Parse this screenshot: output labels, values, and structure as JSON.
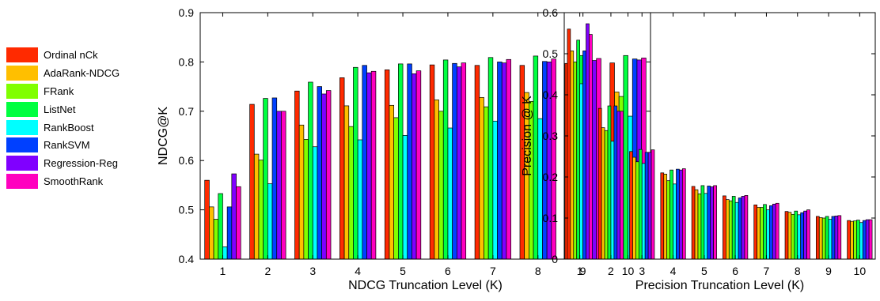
{
  "legend": [
    {
      "label": "Ordinal nCk",
      "color": "#FF2A00"
    },
    {
      "label": "AdaRank-NDCG",
      "color": "#FFBF00"
    },
    {
      "label": "FRank",
      "color": "#80FF00"
    },
    {
      "label": "ListNet",
      "color": "#00FF40"
    },
    {
      "label": "RankBoost",
      "color": "#00FFFF"
    },
    {
      "label": "RankSVM",
      "color": "#0040FF"
    },
    {
      "label": "Regression-Reg",
      "color": "#8000FF"
    },
    {
      "label": "SmoothRank",
      "color": "#FF00BF"
    }
  ],
  "chart_data": [
    {
      "type": "bar",
      "xlabel": "NDCG Truncation Level (K)",
      "ylabel": "NDCG@K",
      "categories": [
        "1",
        "2",
        "3",
        "4",
        "5",
        "6",
        "7",
        "8",
        "9",
        "10"
      ],
      "ylim": [
        0.4,
        0.9
      ],
      "yticks": [
        0.4,
        0.5,
        0.6,
        0.7,
        0.8,
        0.9
      ],
      "ytick_labels": [
        "0.4",
        "0.5",
        "0.6",
        "0.7",
        "0.8",
        "0.9"
      ],
      "series": [
        {
          "name": "Ordinal nCk",
          "values": [
            0.56,
            0.714,
            0.741,
            0.768,
            0.784,
            0.794,
            0.793,
            0.793,
            0.797,
            0.798
          ]
        },
        {
          "name": "AdaRank-NDCG",
          "values": [
            0.506,
            0.613,
            0.672,
            0.711,
            0.712,
            0.723,
            0.728,
            0.738,
            0.738,
            0.739
          ]
        },
        {
          "name": "FRank",
          "values": [
            0.481,
            0.601,
            0.643,
            0.669,
            0.687,
            0.7,
            0.709,
            0.72,
            0.727,
            0.73
          ]
        },
        {
          "name": "ListNet",
          "values": [
            0.533,
            0.726,
            0.759,
            0.789,
            0.796,
            0.804,
            0.809,
            0.812,
            0.813,
            0.813
          ]
        },
        {
          "name": "RankBoost",
          "values": [
            0.425,
            0.553,
            0.628,
            0.642,
            0.651,
            0.666,
            0.68,
            0.685,
            0.685,
            0.69
          ]
        },
        {
          "name": "RankSVM",
          "values": [
            0.506,
            0.727,
            0.75,
            0.793,
            0.796,
            0.797,
            0.8,
            0.801,
            0.805,
            0.806
          ]
        },
        {
          "name": "Regression-Reg",
          "values": [
            0.573,
            0.7,
            0.735,
            0.778,
            0.776,
            0.79,
            0.798,
            0.8,
            0.803,
            0.804
          ]
        },
        {
          "name": "SmoothRank",
          "values": [
            0.547,
            0.7,
            0.742,
            0.781,
            0.782,
            0.798,
            0.805,
            0.806,
            0.807,
            0.808
          ]
        }
      ]
    },
    {
      "type": "bar",
      "xlabel": "Precision Truncation Level (K)",
      "ylabel": "Precision @ K",
      "categories": [
        "1",
        "2",
        "3",
        "4",
        "5",
        "6",
        "7",
        "8",
        "9",
        "10"
      ],
      "ylim": [
        0,
        0.6
      ],
      "yticks": [
        0,
        0.1,
        0.2,
        0.3,
        0.4,
        0.5,
        0.6
      ],
      "ytick_labels": [
        "0",
        "0.1",
        "0.2",
        "0.3",
        "0.4",
        "0.5",
        "0.6"
      ],
      "series": [
        {
          "name": "Ordinal nCk",
          "values": [
            0.56,
            0.367,
            0.262,
            0.21,
            0.177,
            0.154,
            0.132,
            0.116,
            0.104,
            0.094
          ]
        },
        {
          "name": "AdaRank-NDCG",
          "values": [
            0.507,
            0.32,
            0.248,
            0.207,
            0.169,
            0.145,
            0.126,
            0.114,
            0.101,
            0.092
          ]
        },
        {
          "name": "FRank",
          "values": [
            0.48,
            0.313,
            0.237,
            0.191,
            0.159,
            0.142,
            0.126,
            0.109,
            0.1,
            0.093
          ]
        },
        {
          "name": "ListNet",
          "values": [
            0.533,
            0.373,
            0.267,
            0.217,
            0.179,
            0.153,
            0.133,
            0.117,
            0.104,
            0.095
          ]
        },
        {
          "name": "RankBoost",
          "values": [
            0.427,
            0.287,
            0.233,
            0.183,
            0.16,
            0.138,
            0.12,
            0.108,
            0.097,
            0.089
          ]
        },
        {
          "name": "RankSVM",
          "values": [
            0.507,
            0.373,
            0.26,
            0.219,
            0.178,
            0.149,
            0.13,
            0.113,
            0.104,
            0.094
          ]
        },
        {
          "name": "Regression-Reg",
          "values": [
            0.573,
            0.36,
            0.26,
            0.217,
            0.176,
            0.153,
            0.134,
            0.117,
            0.105,
            0.096
          ]
        },
        {
          "name": "SmoothRank",
          "values": [
            0.547,
            0.36,
            0.266,
            0.22,
            0.179,
            0.155,
            0.136,
            0.12,
            0.106,
            0.096
          ]
        }
      ]
    }
  ]
}
